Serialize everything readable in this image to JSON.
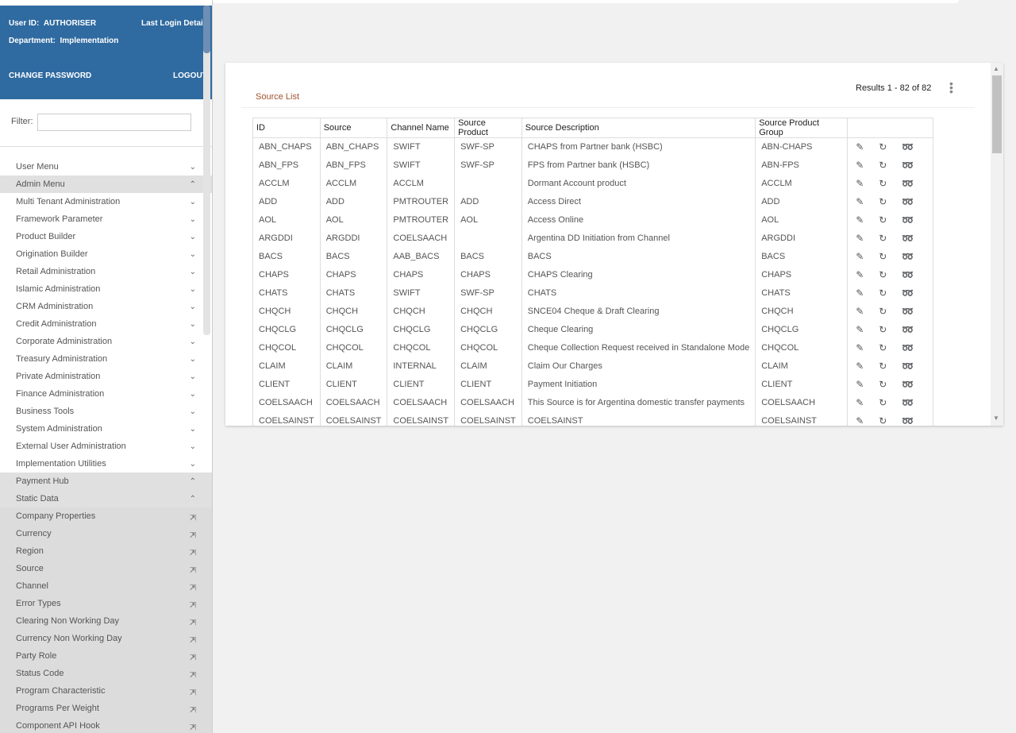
{
  "user": {
    "user_id_label": "User ID:",
    "user_id": "AUTHORISER",
    "department_label": "Department:",
    "department": "Implementation",
    "last_login": "Last Login Details",
    "change_password": "CHANGE PASSWORD",
    "logout": "LOGOUT"
  },
  "filter": {
    "label": "Filter:",
    "value": ""
  },
  "menu": [
    {
      "label": "User Menu",
      "icon": "chevron-down",
      "style": "normal"
    },
    {
      "label": "Admin Menu",
      "icon": "chevron-up",
      "style": "open"
    },
    {
      "label": "Multi Tenant Administration",
      "icon": "chevron-down",
      "style": "normal"
    },
    {
      "label": "Framework Parameter",
      "icon": "chevron-down",
      "style": "normal"
    },
    {
      "label": "Product Builder",
      "icon": "chevron-down",
      "style": "normal"
    },
    {
      "label": "Origination Builder",
      "icon": "chevron-down",
      "style": "normal"
    },
    {
      "label": "Retail Administration",
      "icon": "chevron-down",
      "style": "normal"
    },
    {
      "label": "Islamic Administration",
      "icon": "chevron-down",
      "style": "normal"
    },
    {
      "label": "CRM Administration",
      "icon": "chevron-down",
      "style": "normal"
    },
    {
      "label": "Credit Administration",
      "icon": "chevron-down",
      "style": "normal"
    },
    {
      "label": "Corporate Administration",
      "icon": "chevron-down",
      "style": "normal"
    },
    {
      "label": "Treasury Administration",
      "icon": "chevron-down",
      "style": "normal"
    },
    {
      "label": "Private Administration",
      "icon": "chevron-down",
      "style": "normal"
    },
    {
      "label": "Finance Administration",
      "icon": "chevron-down",
      "style": "normal"
    },
    {
      "label": "Business Tools",
      "icon": "chevron-down",
      "style": "normal"
    },
    {
      "label": "System Administration",
      "icon": "chevron-down",
      "style": "normal"
    },
    {
      "label": "External User Administration",
      "icon": "chevron-down",
      "style": "normal"
    },
    {
      "label": "Implementation Utilities",
      "icon": "chevron-down",
      "style": "normal"
    },
    {
      "label": "Payment Hub",
      "icon": "chevron-up",
      "style": "open"
    },
    {
      "label": "Static Data",
      "icon": "chevron-up",
      "style": "open"
    },
    {
      "label": "Company Properties",
      "icon": "open-link",
      "style": "sub"
    },
    {
      "label": "Currency",
      "icon": "open-link",
      "style": "sub"
    },
    {
      "label": "Region",
      "icon": "open-link",
      "style": "sub"
    },
    {
      "label": "Source",
      "icon": "open-link",
      "style": "sub"
    },
    {
      "label": "Channel",
      "icon": "open-link",
      "style": "sub"
    },
    {
      "label": "Error Types",
      "icon": "open-link",
      "style": "sub"
    },
    {
      "label": "Clearing Non Working Day",
      "icon": "open-link",
      "style": "sub"
    },
    {
      "label": "Currency Non Working Day",
      "icon": "open-link",
      "style": "sub"
    },
    {
      "label": "Party Role",
      "icon": "open-link",
      "style": "sub"
    },
    {
      "label": "Status Code",
      "icon": "open-link",
      "style": "sub"
    },
    {
      "label": "Program Characteristic",
      "icon": "open-link",
      "style": "sub"
    },
    {
      "label": "Programs Per Weight",
      "icon": "open-link",
      "style": "sub"
    },
    {
      "label": "Component API Hook",
      "icon": "open-link",
      "style": "sub"
    }
  ],
  "main": {
    "title": "Source List",
    "results": "Results 1 - 82 of 82",
    "columns": [
      "ID",
      "Source",
      "Channel Name",
      "Source Product",
      "Source Description",
      "Source Product Group",
      ""
    ],
    "rows": [
      [
        "ABN_CHAPS",
        "ABN_CHAPS",
        "SWIFT",
        "SWF-SP",
        "CHAPS from Partner bank (HSBC)",
        "ABN-CHAPS"
      ],
      [
        "ABN_FPS",
        "ABN_FPS",
        "SWIFT",
        "SWF-SP",
        "FPS from Partner bank (HSBC)",
        "ABN-FPS"
      ],
      [
        "ACCLM",
        "ACCLM",
        "ACCLM",
        "",
        "Dormant Account product",
        "ACCLM"
      ],
      [
        "ADD",
        "ADD",
        "PMTROUTER",
        "ADD",
        "Access Direct",
        "ADD"
      ],
      [
        "AOL",
        "AOL",
        "PMTROUTER",
        "AOL",
        "Access Online",
        "AOL"
      ],
      [
        "ARGDDI",
        "ARGDDI",
        "COELSAACH",
        "",
        "Argentina DD Initiation from Channel",
        "ARGDDI"
      ],
      [
        "BACS",
        "BACS",
        "AAB_BACS",
        "BACS",
        "BACS",
        "BACS"
      ],
      [
        "CHAPS",
        "CHAPS",
        "CHAPS",
        "CHAPS",
        "CHAPS Clearing",
        "CHAPS"
      ],
      [
        "CHATS",
        "CHATS",
        "SWIFT",
        "SWF-SP",
        "CHATS",
        "CHATS"
      ],
      [
        "CHQCH",
        "CHQCH",
        "CHQCH",
        "CHQCH",
        "SNCE04 Cheque & Draft Clearing",
        "CHQCH"
      ],
      [
        "CHQCLG",
        "CHQCLG",
        "CHQCLG",
        "CHQCLG",
        "Cheque Clearing",
        "CHQCLG"
      ],
      [
        "CHQCOL",
        "CHQCOL",
        "CHQCOL",
        "CHQCOL",
        "Cheque Collection Request received in Standalone Mode",
        "CHQCOL"
      ],
      [
        "CLAIM",
        "CLAIM",
        "INTERNAL",
        "CLAIM",
        "Claim Our Charges",
        "CLAIM"
      ],
      [
        "CLIENT",
        "CLIENT",
        "CLIENT",
        "CLIENT",
        "Payment Initiation",
        "CLIENT"
      ],
      [
        "COELSAACH",
        "COELSAACH",
        "COELSAACH",
        "COELSAACH",
        "This Source is for Argentina domestic transfer payments",
        "COELSAACH"
      ],
      [
        "COELSAINST",
        "COELSAINST",
        "COELSAINST",
        "COELSAINST",
        "COELSAINST",
        "COELSAINST"
      ]
    ],
    "row_actions": [
      "edit-icon",
      "reset-icon",
      "view-icon"
    ]
  }
}
